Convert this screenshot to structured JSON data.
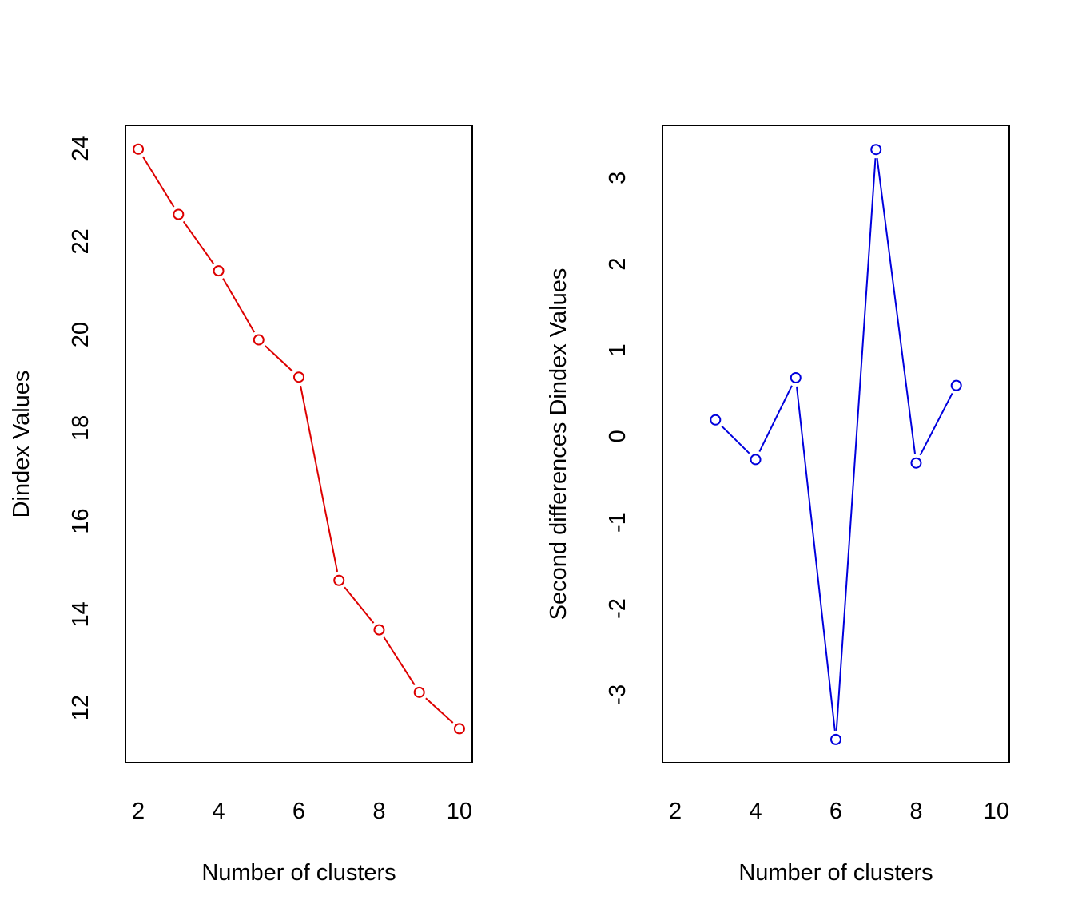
{
  "chart_data": [
    {
      "type": "line",
      "title": "",
      "xlabel": "Number of clusters",
      "ylabel": "Dindex Values",
      "color": "#dd0000",
      "marker": "open-circle",
      "xlim": [
        1.68,
        10.32
      ],
      "ylim": [
        10.82,
        24.49
      ],
      "x_ticks": [
        2,
        4,
        6,
        8,
        10
      ],
      "x_tick_labels": [
        "2",
        "4",
        "6",
        "8",
        "10"
      ],
      "y_ticks": [
        12,
        14,
        16,
        18,
        20,
        22,
        24
      ],
      "y_tick_labels": [
        "12",
        "14",
        "16",
        "18",
        "20",
        "22",
        "24"
      ],
      "grid": false,
      "legend": "none",
      "series": [
        {
          "x": [
            2,
            3,
            4,
            5,
            6,
            7,
            8,
            9,
            10
          ],
          "values": [
            23.98,
            22.58,
            21.37,
            19.89,
            19.09,
            14.73,
            13.67,
            12.33,
            11.55
          ]
        }
      ]
    },
    {
      "type": "line",
      "title": "",
      "xlabel": "Number of clusters",
      "ylabel": "Second differences Dindex Values",
      "color": "#0000dd",
      "marker": "open-circle",
      "xlim": [
        1.68,
        10.32
      ],
      "ylim": [
        -3.79,
        3.61
      ],
      "x_ticks": [
        2,
        4,
        6,
        8,
        10
      ],
      "x_tick_labels": [
        "2",
        "4",
        "6",
        "8",
        "10"
      ],
      "y_ticks": [
        -3,
        -2,
        -1,
        0,
        1,
        2,
        3
      ],
      "y_tick_labels": [
        "-3",
        "-2",
        "-1",
        "0",
        "1",
        "2",
        "3"
      ],
      "grid": false,
      "legend": "none",
      "series": [
        {
          "x": [
            3,
            4,
            5,
            6,
            7,
            8,
            9
          ],
          "values": [
            0.19,
            -0.27,
            0.68,
            -3.52,
            3.33,
            -0.31,
            0.59
          ]
        }
      ]
    }
  ]
}
